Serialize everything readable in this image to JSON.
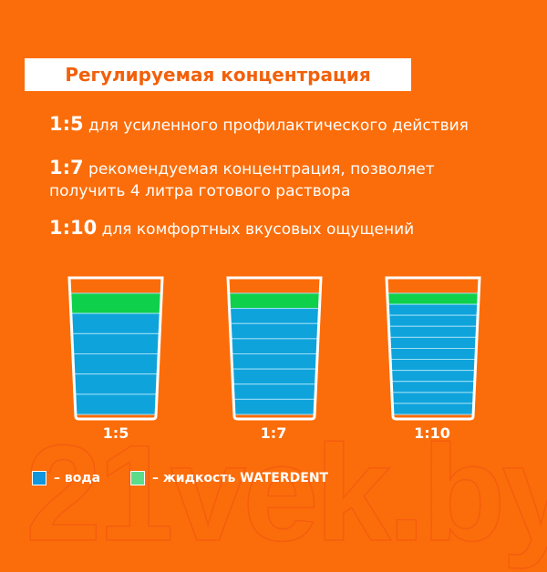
{
  "watermark": "21vek.by",
  "title": "Регулируемая концентрация",
  "lines": [
    {
      "ratio": "1:5",
      "text": " для усиленного профилактического действия"
    },
    {
      "ratio": "1:7",
      "text": " рекомендуемая концентрация, позволяет",
      "text2": "получить 4 литра готового раствора"
    },
    {
      "ratio": "1:10",
      "text": " для комфортных вкусовых ощущений"
    }
  ],
  "glasses": [
    {
      "label": "1:5",
      "water_parts": 5,
      "liquid_parts": 1
    },
    {
      "label": "1:7",
      "water_parts": 7,
      "liquid_parts": 1
    },
    {
      "label": "1:10",
      "water_parts": 10,
      "liquid_parts": 1
    }
  ],
  "legend": {
    "water": "– вода",
    "liquid": "– жидкость WATERDENT"
  },
  "colors": {
    "background": "#fb6d0a",
    "water": "#0fa3dc",
    "liquid": "#0fd04a"
  }
}
